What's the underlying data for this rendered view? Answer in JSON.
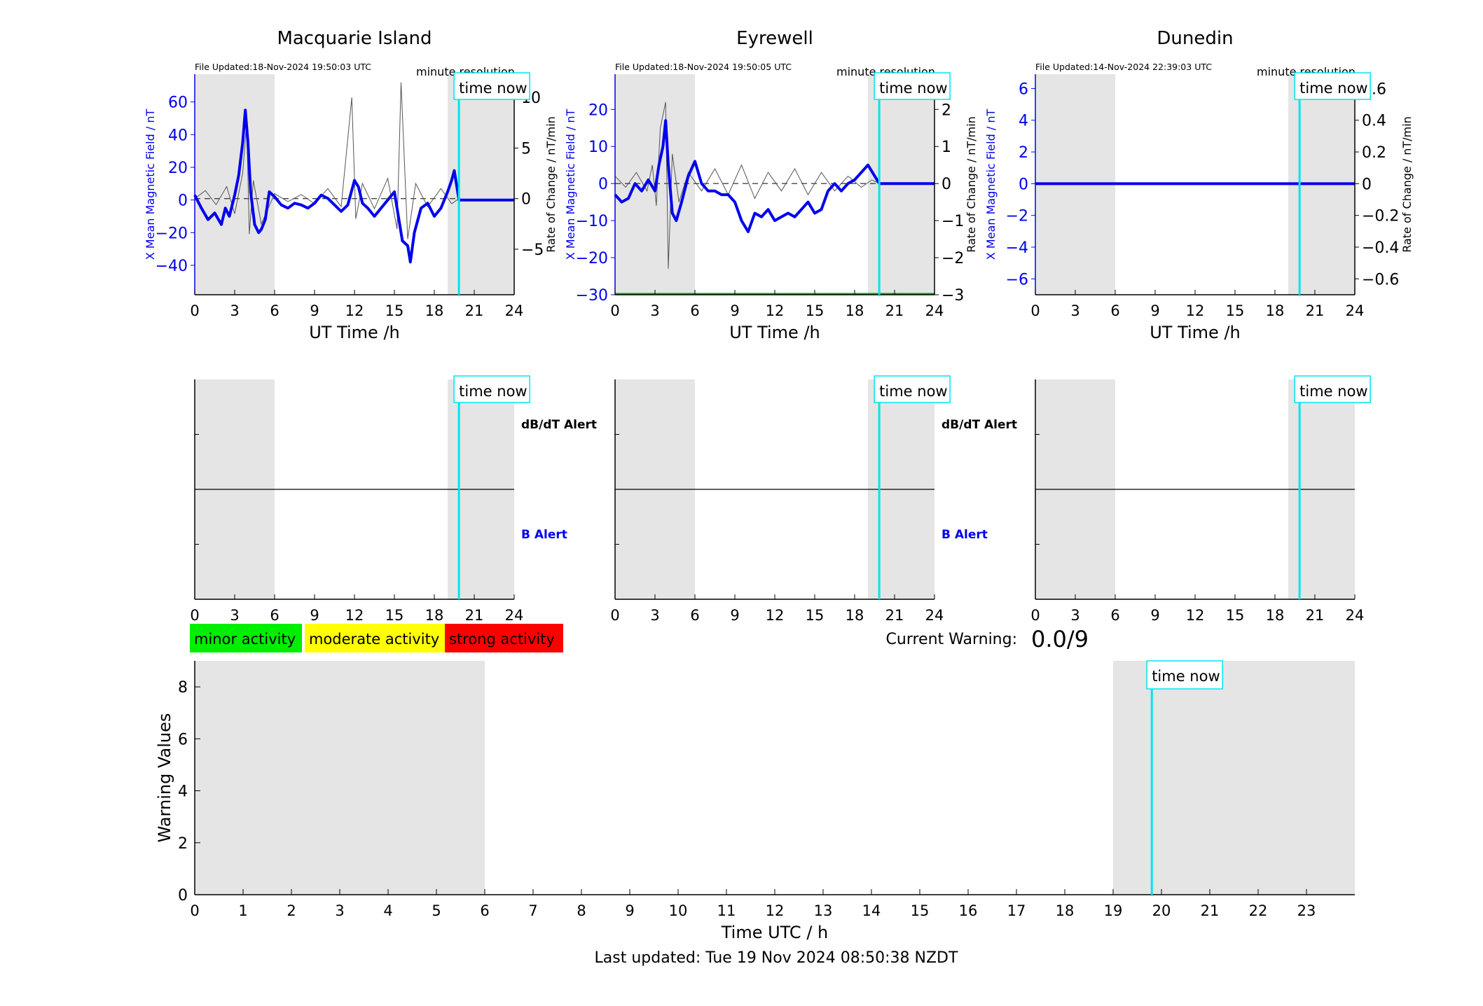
{
  "footer": {
    "last_updated": "Last updated: Tue 19 Nov 2024 08:50:38 NZDT"
  },
  "common": {
    "time_now_label": "time now",
    "resolution_label": "minute resolution",
    "x_axis_label": "UT Time /h",
    "db_alert_label": "dB/dT Alert",
    "b_alert_label": "B Alert",
    "time_now_hour": 19.85,
    "shaded_ranges_h": [
      [
        0,
        6
      ],
      [
        19,
        24
      ]
    ],
    "x_ticks": [
      0,
      3,
      6,
      9,
      12,
      15,
      18,
      21,
      24
    ],
    "colors": {
      "field": "#0000ee",
      "rate": "#555555",
      "time_now": "#00e5ee",
      "shade": "#e5e5e5",
      "low_band": "#00aa00",
      "minor": "#00ee00",
      "moderate": "#ffff00",
      "strong": "#ff0000"
    }
  },
  "legend": {
    "minor": "minor activity",
    "moderate": "moderate activity",
    "strong": "strong activity"
  },
  "warning": {
    "label": "Current Warning:",
    "value": "0.0/9"
  },
  "chart_data": [
    {
      "type": "line",
      "title": "Macquarie Island",
      "file_updated": "File Updated:18-Nov-2024 19:50:03 UTC",
      "ylabel": "X Mean Magnetic Field / nT",
      "ylabel2": "Rate of Change / nT/min",
      "xlim": [
        0,
        24
      ],
      "ylim": [
        -58,
        77
      ],
      "y2lim": [
        -9.5,
        12.3
      ],
      "yticks": [
        -40,
        -20,
        0,
        20,
        40,
        60
      ],
      "y2ticks": [
        -5,
        0,
        5,
        10
      ],
      "series": [
        {
          "x": [
            0,
            0.5,
            1,
            1.5,
            2,
            2.3,
            2.6,
            3,
            3.3,
            3.6,
            3.8,
            4.0,
            4.2,
            4.5,
            4.8,
            5.0,
            5.3,
            5.6,
            6,
            6.5,
            7,
            7.5,
            8,
            8.5,
            9,
            9.5,
            10,
            10.5,
            11,
            11.5,
            12,
            12.3,
            12.6,
            13,
            13.5,
            14,
            14.5,
            15,
            15.3,
            15.6,
            16,
            16.2,
            16.5,
            17,
            17.5,
            18,
            18.5,
            19,
            19.3,
            19.5,
            19.85,
            24
          ],
          "y": [
            3,
            -5,
            -12,
            -8,
            -15,
            -5,
            -10,
            3,
            15,
            35,
            55,
            35,
            5,
            -15,
            -20,
            -18,
            -12,
            5,
            2,
            -3,
            -5,
            -2,
            -3,
            -5,
            -2,
            3,
            1,
            -3,
            -7,
            -3,
            12,
            8,
            -2,
            -5,
            -10,
            -5,
            0,
            5,
            -10,
            -25,
            -28,
            -38,
            -20,
            -5,
            -2,
            -10,
            -5,
            5,
            12,
            18,
            0,
            0
          ]
        },
        {
          "x": [
            0,
            0.8,
            1.6,
            2.4,
            3.0,
            3.6,
            3.9,
            4.1,
            4.4,
            5.0,
            6,
            7,
            8,
            9,
            10,
            11,
            11.8,
            12.1,
            12.6,
            13.5,
            14.5,
            15.2,
            15.5,
            16,
            16.6,
            17.5,
            18.5,
            19.3,
            19.85
          ],
          "y": [
            0,
            0.8,
            -0.6,
            1.2,
            -1.5,
            2.5,
            7.5,
            -3.5,
            1.8,
            -2.5,
            0.5,
            -0.3,
            0.4,
            -0.5,
            1.0,
            -0.8,
            10.0,
            -2.0,
            1.5,
            -1.0,
            2.0,
            -3.0,
            11.5,
            -4.0,
            1.5,
            -0.8,
            1.0,
            -0.5,
            0
          ]
        }
      ]
    },
    {
      "type": "line",
      "title": "Eyrewell",
      "file_updated": "File Updated:18-Nov-2024 19:50:05 UTC",
      "ylabel": "X Mean Magnetic Field / nT",
      "ylabel2": "Rate of Change / nT/min",
      "xlim": [
        0,
        24
      ],
      "ylim": [
        -30,
        29.5
      ],
      "y2lim": [
        -3,
        2.95
      ],
      "yticks": [
        -30,
        -20,
        -10,
        0,
        10,
        20
      ],
      "y2ticks": [
        -3,
        -2,
        -1,
        0,
        1,
        2
      ],
      "series": [
        {
          "x": [
            0,
            0.5,
            1,
            1.5,
            2,
            2.5,
            3,
            3.3,
            3.6,
            3.8,
            4.0,
            4.3,
            4.6,
            5.0,
            5.5,
            6,
            6.5,
            7,
            7.5,
            8,
            8.5,
            9,
            9.5,
            10,
            10.5,
            11,
            11.5,
            12,
            12.5,
            13,
            13.5,
            14,
            14.5,
            15,
            15.5,
            16,
            16.5,
            17,
            17.5,
            18,
            18.5,
            19,
            19.85,
            24
          ],
          "y": [
            -3,
            -5,
            -4,
            0,
            -2,
            1,
            -2,
            5,
            10,
            17,
            5,
            -8,
            -10,
            -5,
            2,
            6,
            0,
            -2,
            -2,
            -3,
            -3,
            -5,
            -10,
            -13,
            -8,
            -9,
            -7,
            -10,
            -9,
            -8,
            -9,
            -7,
            -5,
            -8,
            -7,
            -2,
            0,
            -2,
            0,
            1,
            3,
            5,
            0,
            0
          ]
        },
        {
          "x": [
            0,
            0.8,
            1.6,
            2.4,
            2.8,
            3.1,
            3.4,
            3.8,
            4.0,
            4.3,
            4.8,
            5.5,
            6.5,
            7.5,
            8.5,
            9.5,
            10.5,
            11.5,
            12.5,
            13.5,
            14.5,
            15.5,
            16.5,
            17.5,
            18.5,
            19.3,
            19.85
          ],
          "y": [
            0.2,
            -0.1,
            0.3,
            -0.2,
            0.5,
            -0.6,
            1.5,
            2.2,
            -2.3,
            0.8,
            -0.5,
            0.3,
            -0.2,
            0.4,
            -0.3,
            0.5,
            -0.4,
            0.3,
            -0.2,
            0.4,
            -0.3,
            0.3,
            -0.2,
            0.2,
            -0.1,
            0.1,
            0
          ]
        },
        {
          "x": [
            0,
            24
          ],
          "y": [
            -30,
            -30
          ]
        }
      ]
    },
    {
      "type": "line",
      "title": "Dunedin",
      "file_updated": "File Updated:14-Nov-2024 22:39:03 UTC",
      "ylabel": "X Mean Magnetic Field / nT",
      "ylabel2": "Rate of Change / nT/min",
      "xlim": [
        0,
        24
      ],
      "ylim": [
        -7,
        6.9
      ],
      "y2lim": [
        -0.7,
        0.69
      ],
      "yticks": [
        -6,
        -4,
        -2,
        0,
        2,
        4,
        6
      ],
      "y2ticks": [
        -0.6,
        -0.4,
        -0.2,
        0,
        0.2,
        0.4,
        0.6
      ],
      "series": [
        {
          "x": [
            0,
            24
          ],
          "y": [
            0,
            0
          ]
        }
      ]
    },
    {
      "type": "bar",
      "title": "",
      "xlabel": "Time UTC / h",
      "ylabel": "Warning Values",
      "xlim": [
        0,
        24
      ],
      "ylim": [
        0,
        9
      ],
      "xticks": [
        0,
        1,
        2,
        3,
        4,
        5,
        6,
        7,
        8,
        9,
        10,
        11,
        12,
        13,
        14,
        15,
        16,
        17,
        18,
        19,
        20,
        21,
        22,
        23
      ],
      "yticks": [
        0,
        2,
        4,
        6,
        8
      ],
      "shaded_ranges_h": [
        [
          0,
          6
        ],
        [
          19,
          24
        ]
      ],
      "time_now_hour": 19.8,
      "values": []
    }
  ]
}
